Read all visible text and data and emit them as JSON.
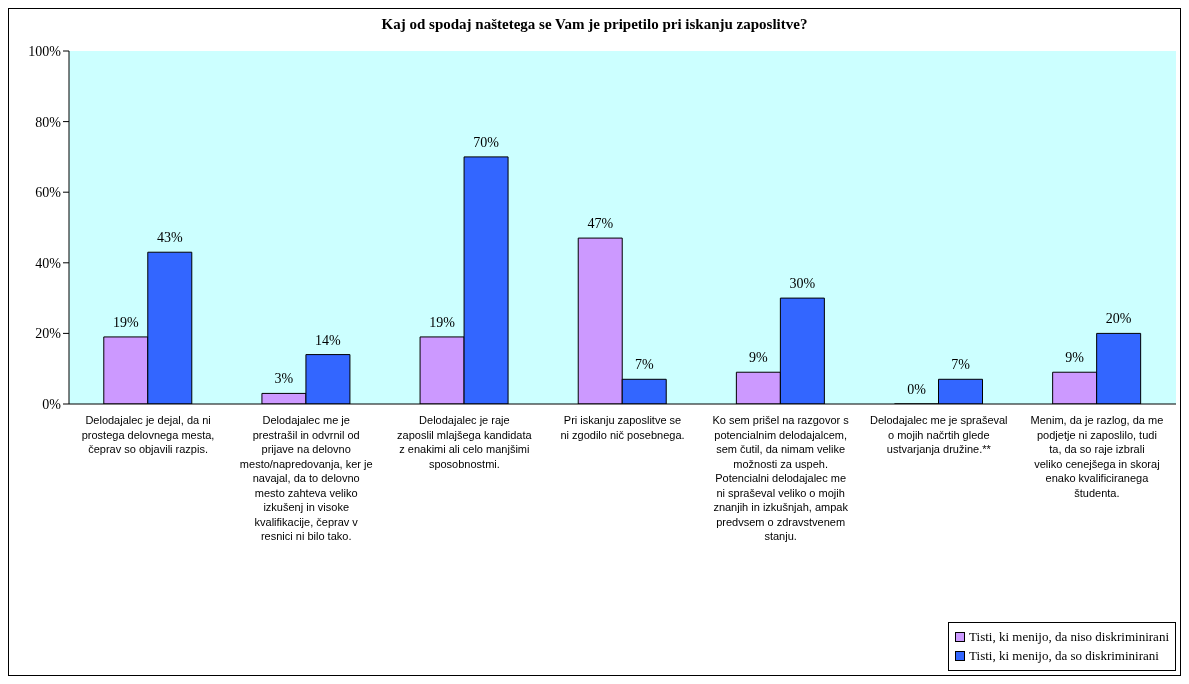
{
  "chart_data": {
    "type": "bar",
    "title": "Kaj od spodaj naštetega se Vam je pripetilo pri iskanju zaposlitve?",
    "categories": [
      "Delodajalec je dejal, da ni prostega delovnega mesta, čeprav so objavili razpis.",
      "Delodajalec me je prestrašil in odvrnil od prijave na delovno mesto/napredovanja, ker je navajal, da to delovno mesto zahteva veliko izkušenj in visoke kvalifikacije, čeprav v resnici ni bilo tako.",
      "Delodajalec je raje zaposlil mlajšega kandidata z enakimi ali celo manjšimi sposobnostmi.",
      "Pri iskanju zaposlitve se ni zgodilo nič posebnega.",
      "Ko sem prišel na razgovor s potencialnim delodajalcem, sem čutil, da nimam velike možnosti za uspeh. Potencialni delodajalec me ni spraševal veliko o mojih znanjih in izkušnjah, ampak predvsem o zdravstvenem stanju.",
      "Delodajalec me je spraševal o mojih načrtih glede ustvarjanja družine.**",
      "Menim, da je razlog, da me podjetje ni zaposlilo, tudi ta, da so raje izbrali veliko cenejšega in skoraj enako kvalificiranega študenta."
    ],
    "series": [
      {
        "name": "Tisti, ki menijo, da niso diskriminirani",
        "color": "#cc99ff",
        "values": [
          19,
          3,
          19,
          47,
          9,
          0,
          9
        ],
        "value_labels": [
          "19%",
          "3%",
          "19%",
          "47%",
          "9%",
          "0%",
          "9%"
        ]
      },
      {
        "name": "Tisti, ki menijo, da so diskriminirani",
        "color": "#3366ff",
        "values": [
          43,
          14,
          70,
          7,
          30,
          7,
          20
        ],
        "value_labels": [
          "43%",
          "14%",
          "70%",
          "7%",
          "30%",
          "7%",
          "20%"
        ]
      }
    ],
    "ylim": [
      0,
      100
    ],
    "yticks": [
      {
        "value": 0,
        "label": "0%"
      },
      {
        "value": 20,
        "label": "20%"
      },
      {
        "value": 40,
        "label": "40%"
      },
      {
        "value": 60,
        "label": "60%"
      },
      {
        "value": 80,
        "label": "80%"
      },
      {
        "value": 100,
        "label": "100%"
      }
    ],
    "grid": false,
    "legend": "bottom right"
  }
}
